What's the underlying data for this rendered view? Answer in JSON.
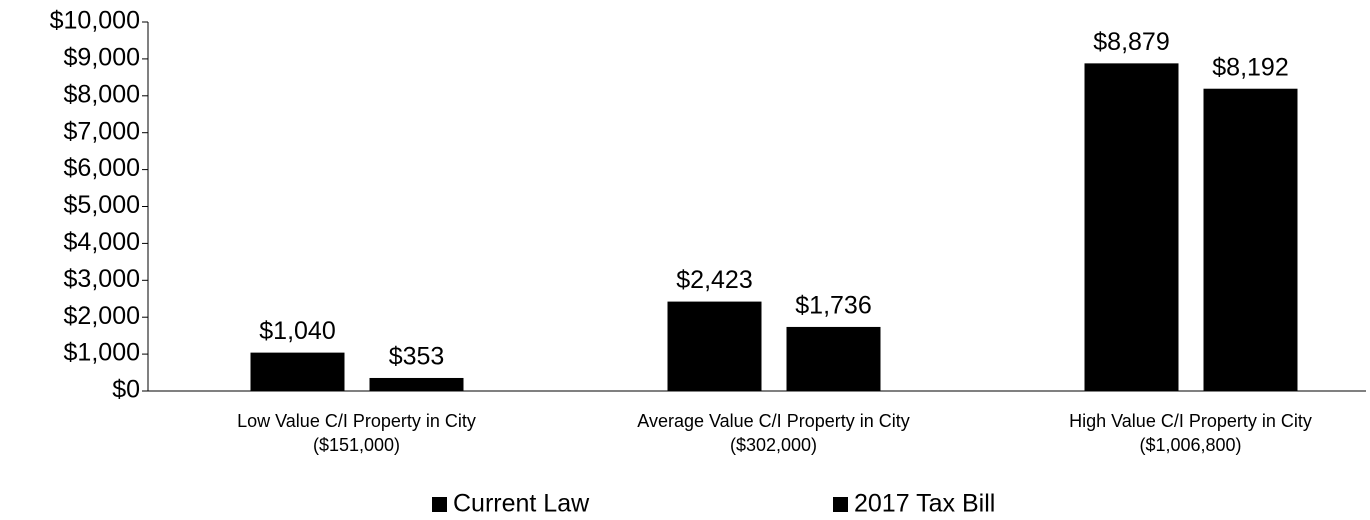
{
  "chart_data": {
    "type": "bar",
    "categories": [
      [
        "Low Value C/I Property in City",
        "($151,000)"
      ],
      [
        "Average Value C/I Property in City",
        "($302,000)"
      ],
      [
        "High Value C/I Property in City",
        "($1,006,800)"
      ]
    ],
    "series": [
      {
        "name": "Current Law",
        "color": "#000000",
        "values": [
          1040,
          2423,
          8879
        ],
        "value_labels": [
          "$1,040",
          "$2,423",
          "$8,879"
        ]
      },
      {
        "name": "2017 Tax Bill",
        "color": "#000000",
        "values": [
          353,
          1736,
          8192
        ],
        "value_labels": [
          "$353",
          "$1,736",
          "$8,192"
        ]
      }
    ],
    "ylim": [
      0,
      10000
    ],
    "yticks": [
      {
        "value": 0,
        "label": "$0"
      },
      {
        "value": 1000,
        "label": "$1,000"
      },
      {
        "value": 2000,
        "label": "$2,000"
      },
      {
        "value": 3000,
        "label": "$3,000"
      },
      {
        "value": 4000,
        "label": "$4,000"
      },
      {
        "value": 5000,
        "label": "$5,000"
      },
      {
        "value": 6000,
        "label": "$6,000"
      },
      {
        "value": 7000,
        "label": "$7,000"
      },
      {
        "value": 8000,
        "label": "$8,000"
      },
      {
        "value": 9000,
        "label": "$9,000"
      },
      {
        "value": 10000,
        "label": "$10,000"
      }
    ],
    "grid": false,
    "legend": "bottom"
  }
}
